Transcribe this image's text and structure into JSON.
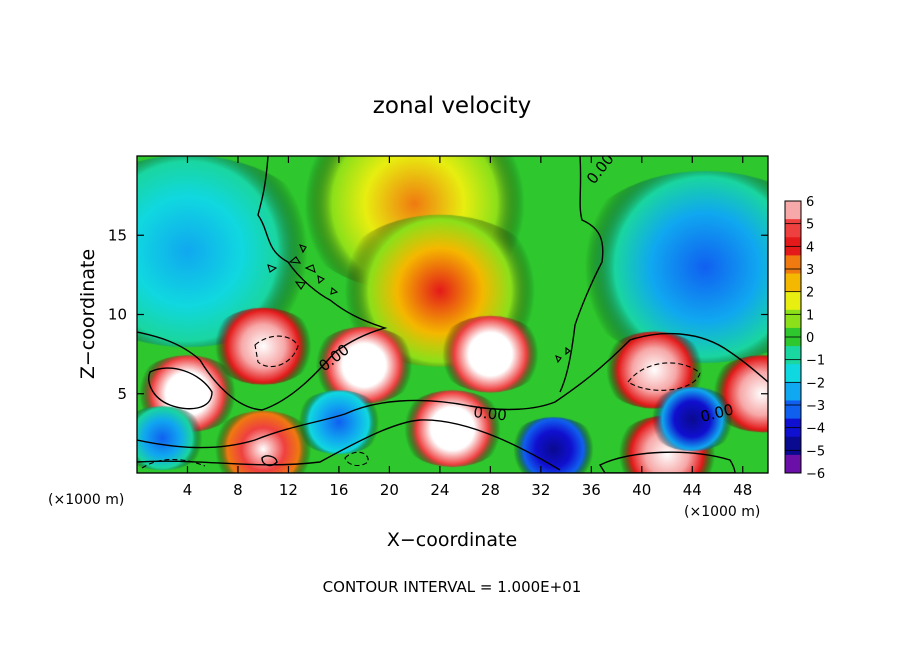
{
  "chart_data": {
    "type": "heatmap",
    "title": "zonal velocity",
    "xlabel": "X−coordinate",
    "ylabel": "Z−coordinate",
    "x_unit_left": "(×1000 m)",
    "x_unit_right": "(×1000 m)",
    "footer": "CONTOUR INTERVAL = 1.000E+01",
    "xlim": [
      0,
      50
    ],
    "ylim": [
      0,
      20
    ],
    "x_ticks": [
      4,
      8,
      12,
      16,
      20,
      24,
      28,
      32,
      36,
      40,
      44,
      48
    ],
    "y_ticks": [
      5,
      10,
      15
    ],
    "colorbar": {
      "levels": [
        6,
        5,
        4,
        3,
        2,
        1,
        0,
        -1,
        -2,
        -3,
        -4,
        -5,
        -6
      ],
      "label_text": [
        "6",
        "5",
        "4",
        "3",
        "2",
        "1",
        "0",
        "−1",
        "−2",
        "−3",
        "−4",
        "−5",
        "−6"
      ],
      "colors": [
        "#f7a8a8",
        "#ef4040",
        "#e41a1a",
        "#f07a10",
        "#f5b800",
        "#e8ee10",
        "#8be01a",
        "#2ec82e",
        "#1ad6a0",
        "#10d8e0",
        "#10a8f0",
        "#1060f0",
        "#1010d0",
        "#0a0a90",
        "#6a10a8"
      ],
      "saturation_color": "#ffffff"
    },
    "contour_labels": [
      "0.00",
      "0.00",
      "0.00",
      "0.00"
    ],
    "field_regions": [
      {
        "feature": "background",
        "value": 0
      },
      {
        "feature": "upper-left negative",
        "x": 4,
        "z": 14,
        "value": -2.5
      },
      {
        "feature": "upper-right negative",
        "x": 45,
        "z": 13,
        "value": -3
      },
      {
        "feature": "upper-center positive",
        "x": 22,
        "z": 17,
        "value": 3
      },
      {
        "feature": "diagonal positive band",
        "x": 24,
        "z": 11.5,
        "value": 4
      },
      {
        "feature": "strong positive lobe",
        "x": 4,
        "z": 5,
        "value": 8
      },
      {
        "feature": "strong positive lobe",
        "x": 18,
        "z": 6.8,
        "value": 8
      },
      {
        "feature": "strong positive lobe",
        "x": 28,
        "z": 7.5,
        "value": 8
      },
      {
        "feature": "strong positive lobe",
        "x": 10,
        "z": 8,
        "value": 7
      },
      {
        "feature": "strong positive lobe",
        "x": 41,
        "z": 6.5,
        "value": 7.5
      },
      {
        "feature": "strong positive lobe",
        "x": 25,
        "z": 2.8,
        "value": 8
      },
      {
        "feature": "strong positive lobe",
        "x": 42,
        "z": 1.2,
        "value": 7.5
      },
      {
        "feature": "strong positive lobe",
        "x": 10,
        "z": 1.5,
        "value": 6.5
      },
      {
        "feature": "strong positive lobe",
        "x": 49.5,
        "z": 5,
        "value": 7
      },
      {
        "feature": "low-level negative",
        "x": 33,
        "z": 1.5,
        "value": -5
      },
      {
        "feature": "low-level negative",
        "x": 16,
        "z": 3.2,
        "value": -3.5
      },
      {
        "feature": "low-level negative",
        "x": 2,
        "z": 2.2,
        "value": -3
      },
      {
        "feature": "low-level negative",
        "x": 44,
        "z": 3.4,
        "value": -4.5
      }
    ]
  }
}
